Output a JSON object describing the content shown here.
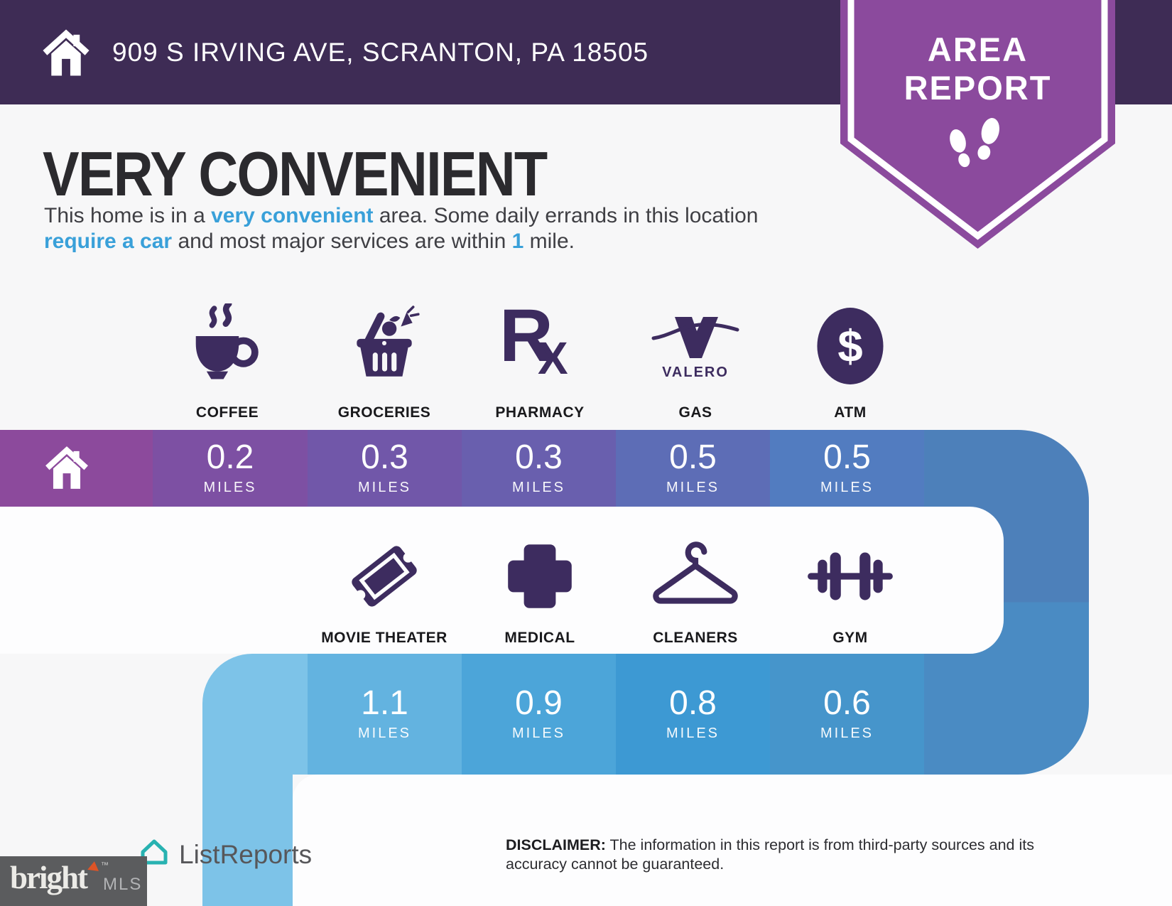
{
  "colors": {
    "background": "#f7f7f8",
    "panel": "#fdfdfe",
    "header_bar": "#3e2c55",
    "badge_purple": "#8b4a9d",
    "icon_indigo": "#3d2c5f",
    "accent_blue": "#39a0d9",
    "title_text": "#2b2a2e",
    "row1_home": "#8c4a9c",
    "row1_cells": [
      "#7d50a3",
      "#7157a9",
      "#695fae",
      "#5d6db6",
      "#527cc0"
    ],
    "connector_top": "#4d80ba",
    "connector_bottom": "#4a8bc3",
    "row2_cap": "#7dc3e8",
    "row2_cells": [
      "#63b3e0",
      "#4ca5d9",
      "#3d99d3",
      "#4695cb"
    ],
    "bright_box": "#5b5c5e",
    "listreports_teal": "#28b2b1"
  },
  "header": {
    "address": "909 S IRVING AVE, SCRANTON, PA 18505"
  },
  "badge": {
    "line1": "AREA",
    "line2": "REPORT",
    "icon": "footprints-icon"
  },
  "intro": {
    "title": "VERY CONVENIENT",
    "paragraph": [
      {
        "text": "This home is in a ",
        "highlight": false
      },
      {
        "text": "very convenient",
        "highlight": true
      },
      {
        "text": " area. Some daily errands in this location ",
        "highlight": false
      },
      {
        "text": "require a car",
        "highlight": true
      },
      {
        "text": " and most major services are within ",
        "highlight": false
      },
      {
        "text": "1",
        "highlight": true
      },
      {
        "text": " mile.",
        "highlight": false
      }
    ]
  },
  "row1": {
    "home_icon": "home-icon",
    "items": [
      {
        "label": "COFFEE",
        "icon": "coffee-icon",
        "distance": "0.2",
        "unit": "MILES"
      },
      {
        "label": "GROCERIES",
        "icon": "groceries-icon",
        "distance": "0.3",
        "unit": "MILES"
      },
      {
        "label": "PHARMACY",
        "icon": "pharmacy-rx-icon",
        "distance": "0.3",
        "unit": "MILES"
      },
      {
        "label": "GAS",
        "icon": "gas-valero-icon",
        "brand": "VALERO",
        "distance": "0.5",
        "unit": "MILES"
      },
      {
        "label": "ATM",
        "icon": "atm-dollar-icon",
        "distance": "0.5",
        "unit": "MILES"
      }
    ]
  },
  "row2": {
    "items": [
      {
        "label": "MOVIE THEATER",
        "icon": "movie-ticket-icon",
        "distance": "1.1",
        "unit": "MILES"
      },
      {
        "label": "MEDICAL",
        "icon": "medical-cross-icon",
        "distance": "0.9",
        "unit": "MILES"
      },
      {
        "label": "CLEANERS",
        "icon": "hanger-icon",
        "distance": "0.8",
        "unit": "MILES"
      },
      {
        "label": "GYM",
        "icon": "dumbbell-icon",
        "distance": "0.6",
        "unit": "MILES"
      }
    ]
  },
  "footer": {
    "listreports": "ListReports",
    "listreports_icon": "house-outline-icon",
    "bright": "bright",
    "bright_tm": "™",
    "mls": "MLS",
    "disclaimer_label": "DISCLAIMER:",
    "disclaimer_text": " The information in this report is from third-party sources and its accuracy cannot be guaranteed."
  }
}
